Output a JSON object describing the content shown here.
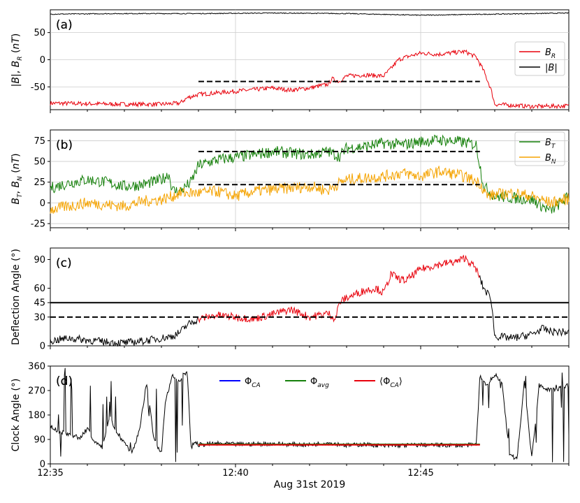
{
  "figure": {
    "xlabel": "Aug 31st 2019",
    "x_tick_labels": [
      "12:35",
      "12:40",
      "12:45"
    ]
  },
  "colors": {
    "B_R": "#e8000b",
    "B_mag": "#000000",
    "B_T": "#15800a",
    "B_N": "#f5a300",
    "deflection_hi": "#e8000b",
    "deflection_lo": "#000000",
    "phi_ca": "#0000ff",
    "phi_avg": "#15800a",
    "phi_ca_avg": "#e8000b"
  },
  "chart_data": [
    {
      "type": "line",
      "tag": "(a)",
      "ylabel": "|B|, B_R (nT)",
      "xlim": [
        0,
        14
      ],
      "ylim": [
        -92,
        92
      ],
      "yticks": [
        -50,
        0,
        50
      ],
      "grid": true,
      "legend_placement": "center-right",
      "series": [
        {
          "name": "B_R",
          "x": [
            0,
            1,
            2,
            3,
            3.5,
            3.7,
            4,
            5,
            6,
            6.5,
            7,
            7.5,
            7.6,
            7.8,
            8,
            8.5,
            9,
            9.2,
            9.4,
            9.6,
            10,
            10.5,
            11,
            11.2,
            11.5,
            11.7,
            11.9,
            12,
            12.5,
            13,
            14
          ],
          "y": [
            -80,
            -81,
            -82,
            -82,
            -80,
            -70,
            -64,
            -58,
            -52,
            -56,
            -52,
            -45,
            -35,
            -40,
            -30,
            -28,
            -30,
            -16,
            0,
            5,
            12,
            10,
            14,
            15,
            5,
            -20,
            -55,
            -82,
            -84,
            -86,
            -85
          ]
        },
        {
          "name": "|B|",
          "x": [
            0,
            2,
            4,
            6,
            8,
            10,
            12,
            14
          ],
          "y": [
            84,
            85,
            85,
            86,
            85,
            82,
            84,
            86
          ]
        }
      ],
      "reference_lines": [
        {
          "style": "dashed",
          "y": -40,
          "x_range": [
            4,
            11.6
          ]
        }
      ]
    },
    {
      "type": "line",
      "tag": "(b)",
      "ylabel": "B_T, B_N (nT)",
      "xlim": [
        0,
        14
      ],
      "ylim": [
        -30,
        88
      ],
      "yticks": [
        -25,
        0,
        25,
        50,
        75
      ],
      "grid": true,
      "legend_placement": "top-right",
      "series": [
        {
          "name": "B_T",
          "x": [
            0,
            0.5,
            1,
            1.5,
            2,
            2.5,
            3,
            3.2,
            3.3,
            3.5,
            3.8,
            4,
            4.5,
            5,
            5.5,
            6,
            6.5,
            7,
            7.5,
            7.8,
            8,
            8.5,
            9,
            9.5,
            10,
            10.5,
            11,
            11.3,
            11.5,
            11.7,
            12,
            12.5,
            13,
            13.5,
            14
          ],
          "y": [
            18,
            24,
            28,
            25,
            20,
            22,
            28,
            35,
            15,
            14,
            25,
            45,
            52,
            55,
            58,
            62,
            60,
            58,
            62,
            56,
            66,
            68,
            72,
            70,
            74,
            76,
            74,
            72,
            70,
            20,
            8,
            6,
            4,
            -10,
            8
          ]
        },
        {
          "name": "B_N",
          "x": [
            0,
            0.5,
            1,
            1.5,
            2,
            2.5,
            3,
            3.3,
            3.5,
            4,
            4.5,
            5,
            5.5,
            6,
            6.5,
            7,
            7.5,
            7.8,
            8,
            8.5,
            9,
            9.5,
            10,
            10.5,
            11,
            11.3,
            11.6,
            11.8,
            12,
            12.5,
            13,
            13.5,
            14
          ],
          "y": [
            -8,
            -4,
            0,
            -2,
            -4,
            2,
            4,
            8,
            12,
            12,
            14,
            8,
            14,
            16,
            18,
            20,
            15,
            24,
            28,
            30,
            32,
            36,
            32,
            38,
            34,
            30,
            24,
            8,
            10,
            12,
            8,
            0,
            5
          ]
        }
      ],
      "reference_lines": [
        {
          "style": "dashed",
          "y": 62,
          "x_range": [
            4,
            11.6
          ]
        },
        {
          "style": "dashed",
          "y": 22,
          "x_range": [
            4,
            11.6
          ]
        }
      ]
    },
    {
      "type": "line",
      "tag": "(c)",
      "ylabel": "Deflection Angle (°)",
      "xlim": [
        0,
        14
      ],
      "ylim": [
        0,
        102
      ],
      "yticks": [
        0,
        30,
        45,
        60,
        90
      ],
      "grid": false,
      "series": [
        {
          "name": "Deflection angle",
          "x": [
            0,
            0.5,
            1,
            1.5,
            2,
            2.5,
            3,
            3.3,
            3.5,
            3.7,
            4,
            4.5,
            5,
            5.5,
            6,
            6.5,
            7,
            7.5,
            7.7,
            7.8,
            8,
            8.5,
            8.8,
            9,
            9.2,
            9.4,
            9.6,
            10,
            10.5,
            11,
            11.2,
            11.5,
            11.7,
            11.9,
            12,
            12.5,
            13,
            13.3,
            13.5,
            14
          ],
          "y": [
            5,
            8,
            6,
            4,
            3,
            5,
            8,
            10,
            14,
            22,
            28,
            32,
            30,
            28,
            33,
            38,
            30,
            34,
            28,
            45,
            50,
            58,
            60,
            55,
            75,
            70,
            68,
            80,
            85,
            88,
            92,
            80,
            60,
            50,
            10,
            8,
            12,
            18,
            15,
            14
          ],
          "color_rule": "red between 4 and 11.6, black elsewhere"
        }
      ],
      "reference_lines": [
        {
          "style": "solid",
          "y": 45
        },
        {
          "style": "dashed",
          "y": 30
        }
      ]
    },
    {
      "type": "line",
      "tag": "(d)",
      "ylabel": "Clock Angle (°)",
      "xlim": [
        0,
        14
      ],
      "ylim": [
        0,
        360
      ],
      "yticks": [
        0,
        90,
        180,
        270,
        360
      ],
      "grid": false,
      "legend_placement": "top-center",
      "series": [
        {
          "name": "Φ_CA",
          "x": [
            0,
            0.2,
            0.5,
            0.8,
            1,
            1.2,
            1.4,
            1.6,
            1.8,
            2,
            2.2,
            2.4,
            2.6,
            2.8,
            3,
            3.1,
            3.3,
            3.5,
            3.6,
            3.7,
            3.8,
            3.9,
            4,
            4.5,
            5,
            6,
            7,
            7.5,
            8,
            8.5,
            9,
            10,
            11,
            11.5,
            11.6,
            11.8,
            12,
            12.2,
            12.4,
            12.6,
            12.8,
            13,
            13.2,
            13.5,
            13.8,
            14
          ],
          "y": [
            140,
            120,
            110,
            95,
            130,
            80,
            60,
            180,
            110,
            80,
            40,
            120,
            300,
            90,
            40,
            220,
            330,
            300,
            340,
            330,
            60,
            80,
            70,
            75,
            72,
            74,
            70,
            78,
            68,
            72,
            66,
            70,
            68,
            70,
            320,
            290,
            330,
            300,
            30,
            20,
            300,
            20,
            290,
            270,
            280,
            290
          ]
        },
        {
          "name": "Φ_avg",
          "x": [
            4,
            11.6
          ],
          "y": [
            72,
            72
          ]
        },
        {
          "name": "⟨Φ_CA⟩",
          "x": [
            4,
            11.6
          ],
          "y": [
            70,
            70
          ]
        }
      ]
    }
  ]
}
